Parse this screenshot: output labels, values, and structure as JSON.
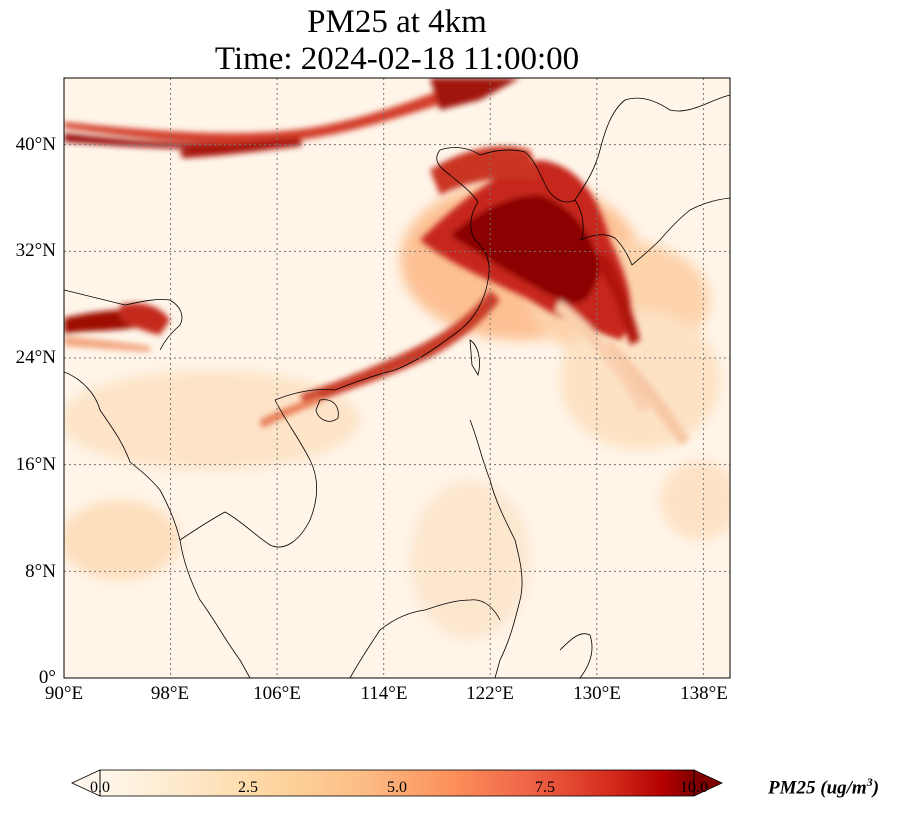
{
  "title": {
    "line1": "PM25 at 4km",
    "line2": "Time: 2024-02-18 11:00:00"
  },
  "map": {
    "extent": {
      "lon": [
        90,
        140
      ],
      "lat": [
        0,
        45
      ]
    },
    "lat_ticks": [
      "0°",
      "8°N",
      "16°N",
      "24°N",
      "32°N",
      "40°N"
    ],
    "lon_ticks": [
      "90°E",
      "98°E",
      "106°E",
      "114°E",
      "122°E",
      "130°E",
      "138°E"
    ],
    "gridlines": true,
    "colormap": "OrRd",
    "background_color": "#fff5e9",
    "high_color": "#8b0000"
  },
  "colorbar": {
    "ticks": [
      "0.0",
      "2.5",
      "5.0",
      "7.5",
      "10.0"
    ],
    "range": [
      0,
      10
    ],
    "extend": "both",
    "label": "PM25 (ug/m",
    "label_sup": "3",
    "label_close": ")"
  }
}
